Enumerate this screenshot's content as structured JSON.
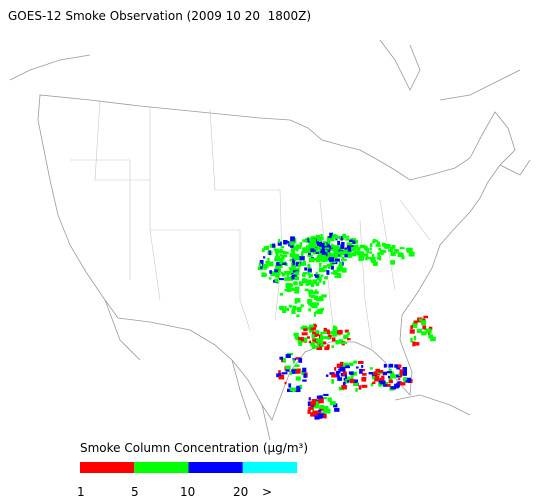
{
  "title": "GOES-12 Smoke Observation (2009 10 20  1800Z)",
  "legend": {
    "title": "Smoke Column Concentration (μg/m³)",
    "colors": [
      "#ff0000",
      "#00ff00",
      "#0000ff",
      "#00ffff"
    ],
    "labels": [
      "1",
      "5",
      "10",
      "20",
      ">"
    ]
  }
}
